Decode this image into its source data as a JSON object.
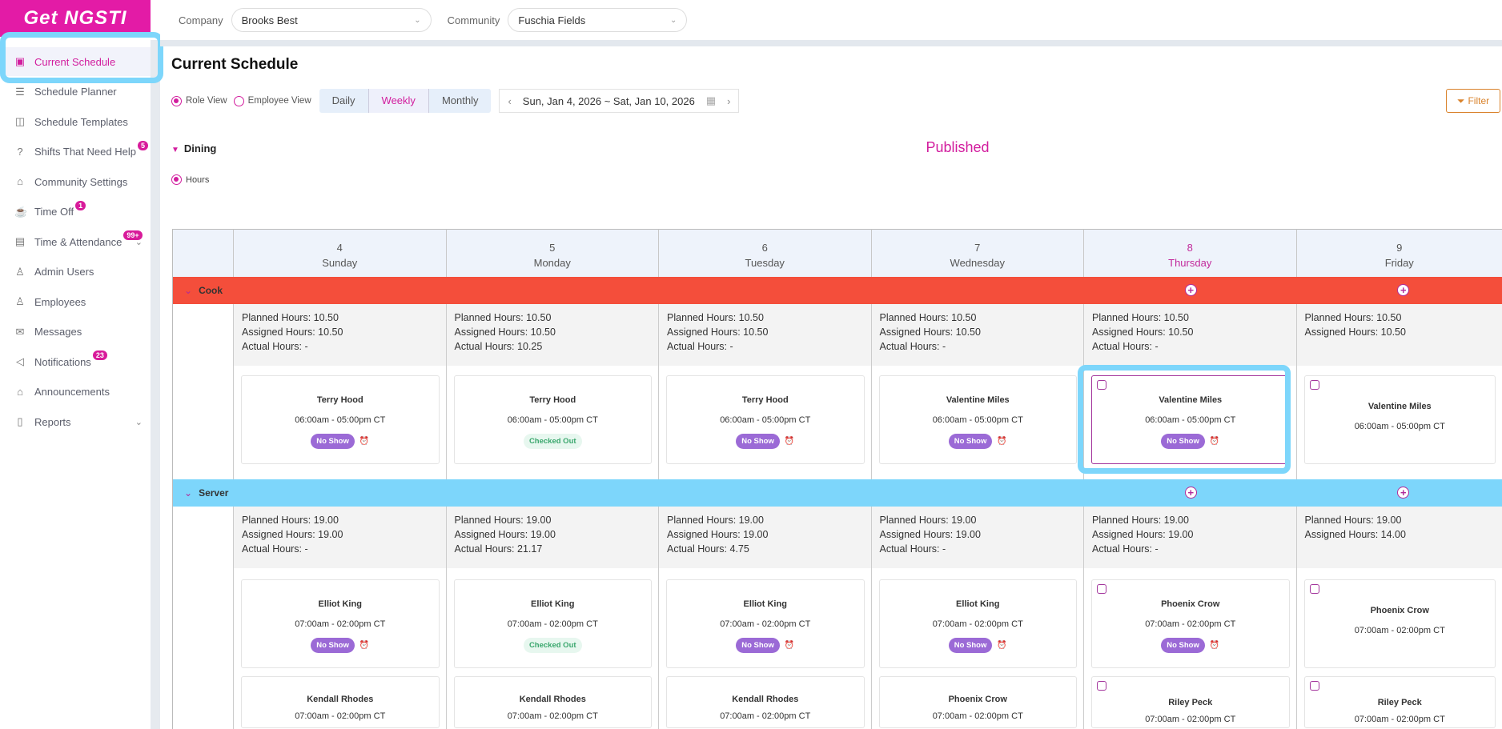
{
  "logo": "Get NGSTI",
  "sidebar": {
    "items": [
      {
        "label": "Current Schedule",
        "icon": "calendar-check-icon",
        "glyph": "▣",
        "active": true
      },
      {
        "label": "Schedule Planner",
        "icon": "sliders-icon",
        "glyph": "☰"
      },
      {
        "label": "Schedule Templates",
        "icon": "template-icon",
        "glyph": "◫"
      },
      {
        "label": "Shifts That Need Help",
        "icon": "help-circle-icon",
        "glyph": "?",
        "badge": "5"
      },
      {
        "label": "Community Settings",
        "icon": "home-settings-icon",
        "glyph": "⌂"
      },
      {
        "label": "Time Off",
        "icon": "coffee-icon",
        "glyph": "☕",
        "badge": "1"
      },
      {
        "label": "Time & Attendance",
        "icon": "calendar-icon",
        "glyph": "▤",
        "badge": "99+",
        "chevron": true
      },
      {
        "label": "Admin Users",
        "icon": "admin-user-icon",
        "glyph": "♙"
      },
      {
        "label": "Employees",
        "icon": "employee-icon",
        "glyph": "♙"
      },
      {
        "label": "Messages",
        "icon": "mail-icon",
        "glyph": "✉"
      },
      {
        "label": "Notifications",
        "icon": "speaker-icon",
        "glyph": "◁",
        "badge": "23"
      },
      {
        "label": "Announcements",
        "icon": "bank-icon",
        "glyph": "⌂"
      },
      {
        "label": "Reports",
        "icon": "report-icon",
        "glyph": "▯",
        "chevron": true
      }
    ]
  },
  "topbar": {
    "company_label": "Company",
    "company_value": "Brooks Best",
    "community_label": "Community",
    "community_value": "Fuschia Fields"
  },
  "page": {
    "title": "Current Schedule",
    "role_view": "Role View",
    "employee_view": "Employee View",
    "views": [
      "Daily",
      "Weekly",
      "Monthly"
    ],
    "active_view": "Weekly",
    "date_range": "Sun, Jan 4, 2026 ~ Sat, Jan 10, 2026",
    "filter": "Filter",
    "department": "Dining",
    "status": "Published",
    "hours_option": "Hours"
  },
  "colors": {
    "accent": "#d21d9e",
    "cook": "#f44e3b",
    "server": "#7dd6fb"
  },
  "days": [
    {
      "num": "4",
      "name": "Sunday"
    },
    {
      "num": "5",
      "name": "Monday"
    },
    {
      "num": "6",
      "name": "Tuesday"
    },
    {
      "num": "7",
      "name": "Wednesday"
    },
    {
      "num": "8",
      "name": "Thursday",
      "today": true
    },
    {
      "num": "9",
      "name": "Friday"
    }
  ],
  "roles": [
    {
      "name": "Cook",
      "color": "#f44e3b",
      "hours": [
        [
          "Planned Hours: 10.50",
          "Assigned Hours: 10.50",
          "Actual Hours: -"
        ],
        [
          "Planned Hours: 10.50",
          "Assigned Hours: 10.50",
          "Actual Hours: 10.25"
        ],
        [
          "Planned Hours: 10.50",
          "Assigned Hours: 10.50",
          "Actual Hours: -"
        ],
        [
          "Planned Hours: 10.50",
          "Assigned Hours: 10.50",
          "Actual Hours: -"
        ],
        [
          "Planned Hours: 10.50",
          "Assigned Hours: 10.50",
          "Actual Hours: -"
        ],
        [
          "Planned Hours: 10.50",
          "Assigned Hours: 10.50"
        ]
      ],
      "shifts": [
        [
          {
            "name": "Terry Hood",
            "time": "06:00am - 05:00pm CT",
            "status": "No Show"
          }
        ],
        [
          {
            "name": "Terry Hood",
            "time": "06:00am - 05:00pm CT",
            "status": "Checked Out"
          }
        ],
        [
          {
            "name": "Terry Hood",
            "time": "06:00am - 05:00pm CT",
            "status": "No Show"
          }
        ],
        [
          {
            "name": "Valentine Miles",
            "time": "06:00am - 05:00pm CT",
            "status": "No Show"
          }
        ],
        [
          {
            "name": "Valentine Miles",
            "time": "06:00am - 05:00pm CT",
            "status": "No Show",
            "checkbox": true,
            "selected": true
          }
        ],
        [
          {
            "name": "Valentine Miles",
            "time": "06:00am - 05:00pm CT",
            "checkbox": true
          }
        ]
      ]
    },
    {
      "name": "Server",
      "color": "#7dd6fb",
      "hours": [
        [
          "Planned Hours: 19.00",
          "Assigned Hours: 19.00",
          "Actual Hours: -"
        ],
        [
          "Planned Hours: 19.00",
          "Assigned Hours: 19.00",
          "Actual Hours: 21.17"
        ],
        [
          "Planned Hours: 19.00",
          "Assigned Hours: 19.00",
          "Actual Hours: 4.75"
        ],
        [
          "Planned Hours: 19.00",
          "Assigned Hours: 19.00",
          "Actual Hours: -"
        ],
        [
          "Planned Hours: 19.00",
          "Assigned Hours: 19.00",
          "Actual Hours: -"
        ],
        [
          "Planned Hours: 19.00",
          "Assigned Hours: 14.00"
        ]
      ],
      "shifts": [
        [
          {
            "name": "Elliot King",
            "time": "07:00am - 02:00pm CT",
            "status": "No Show"
          },
          {
            "name": "Kendall Rhodes",
            "time": "07:00am - 02:00pm CT"
          }
        ],
        [
          {
            "name": "Elliot King",
            "time": "07:00am - 02:00pm CT",
            "status": "Checked Out"
          },
          {
            "name": "Kendall Rhodes",
            "time": "07:00am - 02:00pm CT"
          }
        ],
        [
          {
            "name": "Elliot King",
            "time": "07:00am - 02:00pm CT",
            "status": "No Show"
          },
          {
            "name": "Kendall Rhodes",
            "time": "07:00am - 02:00pm CT"
          }
        ],
        [
          {
            "name": "Elliot King",
            "time": "07:00am - 02:00pm CT",
            "status": "No Show"
          },
          {
            "name": "Phoenix Crow",
            "time": "07:00am - 02:00pm CT"
          }
        ],
        [
          {
            "name": "Phoenix Crow",
            "time": "07:00am - 02:00pm CT",
            "status": "No Show",
            "checkbox": true
          },
          {
            "name": "Riley Peck",
            "time": "07:00am - 02:00pm CT",
            "checkbox": true
          }
        ],
        [
          {
            "name": "Phoenix Crow",
            "time": "07:00am - 02:00pm CT",
            "checkbox": true
          },
          {
            "name": "Riley Peck",
            "time": "07:00am - 02:00pm CT",
            "checkbox": true
          }
        ]
      ]
    }
  ]
}
